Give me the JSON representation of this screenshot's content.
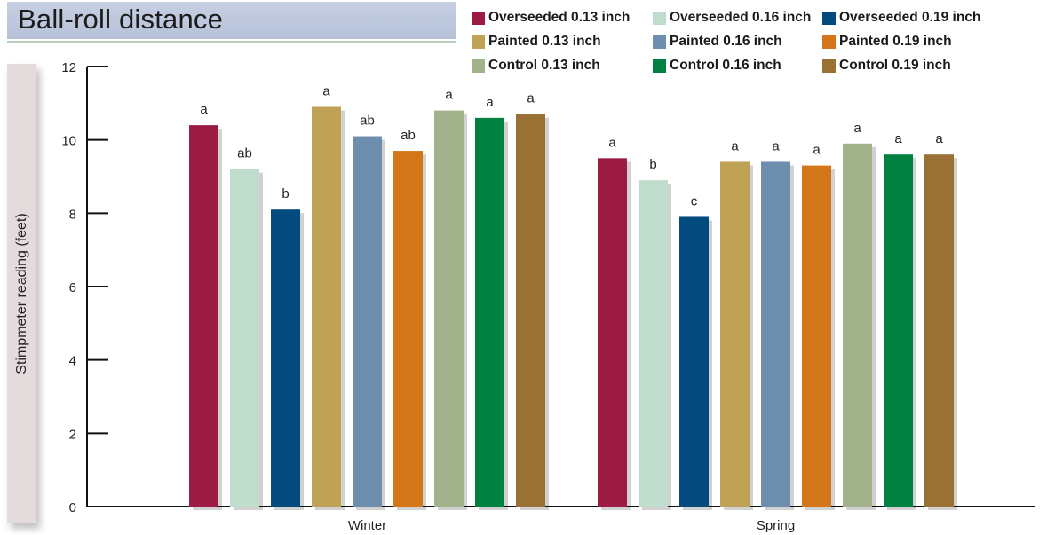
{
  "title": "Ball-roll distance",
  "chart_data": {
    "type": "bar",
    "title": "Ball-roll distance",
    "xlabel": "",
    "ylabel": "Stimpmeter reading (feet)",
    "ylim": [
      0,
      12
    ],
    "yticks": [
      0,
      2,
      4,
      6,
      8,
      10,
      12
    ],
    "categories": [
      "Winter",
      "Spring"
    ],
    "legend_position": "top-right",
    "grid": false,
    "series": [
      {
        "name": "Overseeded 0.13 inch",
        "color": "#9b1b42",
        "values": [
          10.4,
          9.5
        ],
        "labels": [
          "a",
          "a"
        ]
      },
      {
        "name": "Overseeded 0.16 inch",
        "color": "#bfdccd",
        "values": [
          9.2,
          8.9
        ],
        "labels": [
          "ab",
          "b"
        ]
      },
      {
        "name": "Overseeded 0.19 inch",
        "color": "#034a7e",
        "values": [
          8.1,
          7.9
        ],
        "labels": [
          "b",
          "c"
        ]
      },
      {
        "name": "Painted 0.13 inch",
        "color": "#c0a257",
        "values": [
          10.9,
          9.4
        ],
        "labels": [
          "a",
          "a"
        ]
      },
      {
        "name": "Painted 0.16 inch",
        "color": "#6d8fad",
        "values": [
          10.1,
          9.4
        ],
        "labels": [
          "ab",
          "a"
        ]
      },
      {
        "name": "Painted 0.19 inch",
        "color": "#d37519",
        "values": [
          9.7,
          9.3
        ],
        "labels": [
          "ab",
          "a"
        ]
      },
      {
        "name": "Control 0.13 inch",
        "color": "#a2b28b",
        "values": [
          10.8,
          9.9
        ],
        "labels": [
          "a",
          "a"
        ]
      },
      {
        "name": "Control 0.16 inch",
        "color": "#008041",
        "values": [
          10.6,
          9.6
        ],
        "labels": [
          "a",
          "a"
        ]
      },
      {
        "name": "Control 0.19 inch",
        "color": "#9a7134",
        "values": [
          10.7,
          9.6
        ],
        "labels": [
          "a",
          "a"
        ]
      }
    ]
  }
}
